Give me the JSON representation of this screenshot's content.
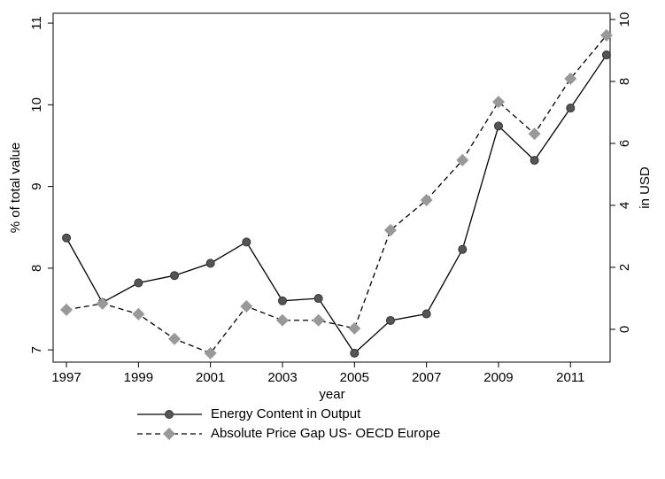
{
  "chart_data": {
    "type": "line",
    "x": [
      1997,
      1998,
      1999,
      2000,
      2001,
      2002,
      2003,
      2004,
      2005,
      2006,
      2007,
      2008,
      2009,
      2010,
      2011,
      2012
    ],
    "xlabel": "year",
    "ylabel": "% of total value",
    "y2label": "in USD",
    "xlim": [
      1996.63,
      2012.1
    ],
    "xticks": [
      1997,
      1999,
      2001,
      2003,
      2005,
      2007,
      2009,
      2011
    ],
    "ylim": [
      6.85,
      11.12
    ],
    "yticks": [
      7,
      8,
      9,
      10,
      11
    ],
    "y2lim": [
      -1.06,
      10.2
    ],
    "y2ticks": [
      0,
      2,
      4,
      6,
      8,
      10
    ],
    "grid": false,
    "legend": "bottom",
    "series": [
      {
        "name": "Energy Content in Output",
        "color": "#000000",
        "marker_color": "#555555",
        "marker": "circle",
        "dash": false,
        "values": [
          8.37,
          7.58,
          7.82,
          7.91,
          8.06,
          8.32,
          7.6,
          7.63,
          6.96,
          7.36,
          7.44,
          8.23,
          9.74,
          9.32,
          9.96,
          10.61
        ]
      },
      {
        "name": "Absolute Price Gap US- OECD Europe",
        "color": "#000000",
        "marker_color": "#999999",
        "marker": "diamond",
        "dash": true,
        "axis": "y2",
        "values": [
          0.63,
          0.83,
          0.49,
          -0.31,
          -0.77,
          0.74,
          0.29,
          0.29,
          0.03,
          3.2,
          4.17,
          5.46,
          7.34,
          6.31,
          8.09,
          9.49
        ]
      }
    ]
  }
}
